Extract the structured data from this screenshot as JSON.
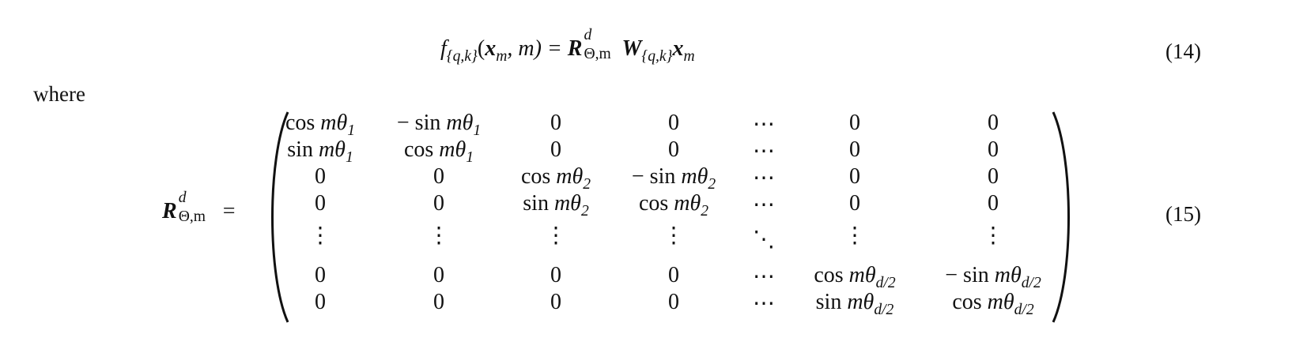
{
  "eq14": {
    "f": "f",
    "f_sub": "{q,k}",
    "args_open": "(",
    "x": "x",
    "x_sub": "m",
    "args_rest": ", m) = ",
    "R": "R",
    "R_sup": "d",
    "R_sub": "Θ,m",
    "W": "W",
    "W_sub": "{q,k}",
    "x2": "x",
    "x2_sub": "m",
    "number": "(14)"
  },
  "where_label": "where",
  "eq15": {
    "lhs_R": "R",
    "lhs_sup": "d",
    "lhs_sub": "Θ,m",
    "equals": "=",
    "number": "(15)",
    "rows": [
      [
        "cos mθ_1",
        "− sin mθ_1",
        "0",
        "0",
        "⋯",
        "0",
        "0"
      ],
      [
        "sin mθ_1",
        "cos mθ_1",
        "0",
        "0",
        "⋯",
        "0",
        "0"
      ],
      [
        "0",
        "0",
        "cos mθ_2",
        "− sin mθ_2",
        "⋯",
        "0",
        "0"
      ],
      [
        "0",
        "0",
        "sin mθ_2",
        "cos mθ_2",
        "⋯",
        "0",
        "0"
      ],
      [
        "⋮",
        "⋮",
        "⋮",
        "⋮",
        "⋱",
        "⋮",
        "⋮"
      ],
      [
        "0",
        "0",
        "0",
        "0",
        "⋯",
        "cos mθ_d/2",
        "− sin mθ_d/2"
      ],
      [
        "0",
        "0",
        "0",
        "0",
        "⋯",
        "sin mθ_d/2",
        "cos mθ_d/2"
      ]
    ]
  }
}
